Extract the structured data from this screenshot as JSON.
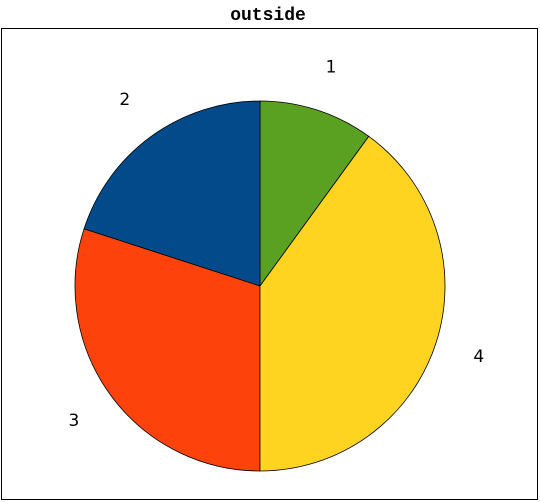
{
  "chart_data": {
    "type": "pie",
    "title": "outside",
    "categories": [
      "1",
      "2",
      "3",
      "4"
    ],
    "values": [
      1,
      2,
      3,
      4
    ],
    "colors": [
      "#5aa021",
      "#024a8a",
      "#fd430b",
      "#fed421"
    ]
  }
}
